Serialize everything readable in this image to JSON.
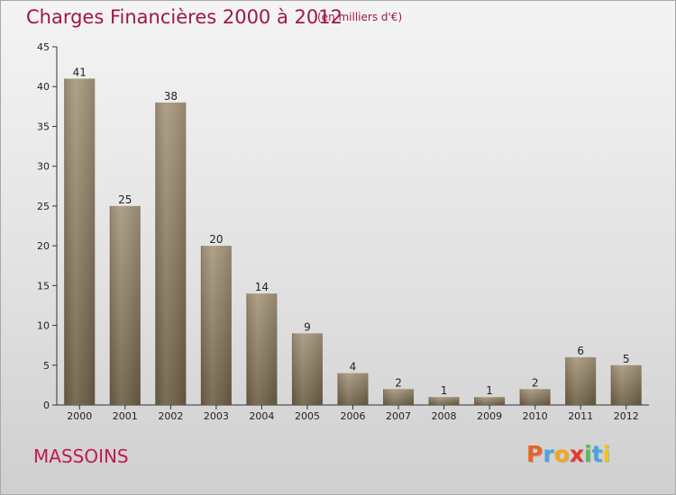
{
  "header": {
    "title": "Charges Financières 2000 à 2012",
    "subtitle": "(en milliers d'€)"
  },
  "commune": "MASSOINS",
  "logo": {
    "letters": [
      "P",
      "r",
      "o",
      "x",
      "i",
      "t",
      "i"
    ],
    "colors": [
      "#e8632a",
      "#4aa3df",
      "#f0a81a",
      "#e33b2f",
      "#5cb85c",
      "#4aa3df",
      "#f0c419"
    ]
  },
  "colors": {
    "title": "#a0154b",
    "bar_top": "#a6977c",
    "bar_bottom": "#6c5d44"
  },
  "chart_data": {
    "type": "bar",
    "title": "Charges Financières 2000 à 2012",
    "subtitle": "(en milliers d'€)",
    "categories": [
      "2000",
      "2001",
      "2002",
      "2003",
      "2004",
      "2005",
      "2006",
      "2007",
      "2008",
      "2009",
      "2010",
      "2011",
      "2012"
    ],
    "values": [
      41,
      25,
      38,
      20,
      14,
      9,
      4,
      2,
      1,
      1,
      2,
      6,
      5
    ],
    "ylim": [
      0,
      45
    ],
    "yticks": [
      0,
      5,
      10,
      15,
      20,
      25,
      30,
      35,
      40,
      45
    ],
    "grid": false,
    "data_labels": true
  }
}
